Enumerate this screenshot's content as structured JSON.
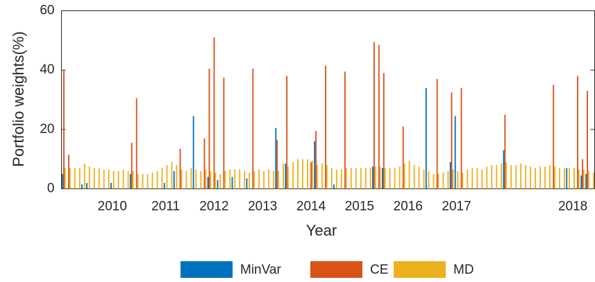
{
  "chart_data": {
    "type": "bar",
    "xlabel": "Year",
    "ylabel": "Portfolio weights(%)",
    "categories": [
      null,
      null,
      null,
      null,
      null,
      null,
      null,
      null,
      null,
      null,
      "2010",
      null,
      null,
      null,
      null,
      null,
      null,
      null,
      null,
      null,
      null,
      "2011",
      null,
      null,
      null,
      null,
      null,
      null,
      null,
      null,
      null,
      "2012",
      null,
      null,
      null,
      null,
      null,
      null,
      null,
      null,
      null,
      "2013",
      null,
      null,
      null,
      null,
      null,
      null,
      null,
      null,
      null,
      "2014",
      null,
      null,
      null,
      null,
      null,
      null,
      null,
      null,
      null,
      "2015",
      null,
      null,
      null,
      null,
      null,
      null,
      null,
      null,
      null,
      "2016",
      null,
      null,
      null,
      null,
      null,
      null,
      null,
      null,
      null,
      "2017",
      null,
      null,
      null,
      null,
      null,
      null,
      null,
      null,
      null,
      null,
      null,
      null,
      null,
      null,
      null,
      null,
      null,
      null,
      null,
      null,
      null,
      null,
      null,
      "2018",
      null,
      null,
      null,
      null
    ],
    "series": [
      {
        "name": "MinVar",
        "color": "#0072BD",
        "values": [
          5,
          0,
          0,
          0,
          1.5,
          2,
          0,
          0,
          0,
          0,
          2,
          0,
          0,
          0,
          5,
          0,
          0,
          0,
          0,
          0,
          0,
          2,
          0,
          6,
          0,
          0,
          0,
          24.5,
          0,
          0,
          4,
          0,
          3,
          0,
          0,
          4,
          0,
          0,
          3.5,
          0,
          0,
          0,
          0,
          0,
          20.5,
          0,
          8.5,
          0,
          0,
          0,
          0,
          0,
          16,
          0,
          0,
          0,
          1.5,
          0,
          0,
          0,
          0,
          0,
          0,
          0,
          7.5,
          0,
          7,
          0,
          0,
          0,
          0,
          0,
          0,
          0,
          0,
          34,
          0,
          0,
          0,
          0,
          9,
          24.5,
          0,
          0,
          0,
          0,
          0,
          0,
          0,
          0,
          0,
          13,
          0,
          0,
          0,
          0,
          0,
          0,
          0,
          0,
          0,
          0,
          0,
          0,
          7,
          0,
          0,
          4.5,
          5,
          0
        ]
      },
      {
        "name": "CE",
        "color": "#D95319",
        "values": [
          40,
          11.5,
          0,
          0,
          0,
          0,
          0,
          0,
          0,
          0,
          0,
          0,
          0,
          0,
          15.5,
          30.5,
          0,
          0,
          0,
          0,
          0,
          0,
          0,
          0,
          13.5,
          0,
          0,
          0,
          0,
          17,
          40.5,
          51,
          0,
          37.5,
          0,
          0,
          0,
          0,
          0,
          40.5,
          0,
          0,
          0,
          0,
          16.5,
          0,
          38,
          0,
          0,
          0,
          0,
          9,
          19.5,
          0,
          41.5,
          0,
          0,
          0,
          39.5,
          0,
          0,
          0,
          0,
          0,
          49.5,
          48.5,
          39,
          0,
          0,
          0,
          21,
          0,
          0,
          0,
          0,
          0,
          0,
          37,
          0,
          0,
          32.5,
          0,
          34,
          0,
          0,
          0,
          0,
          0,
          0,
          0,
          0,
          25,
          0,
          0,
          0,
          0,
          0,
          0,
          0,
          0,
          0,
          35,
          0,
          0,
          0,
          0,
          38,
          10,
          33,
          0
        ]
      },
      {
        "name": "MD",
        "color": "#EDB120",
        "values": [
          7,
          7,
          7,
          7,
          8.5,
          7.5,
          7,
          7,
          6.5,
          6.5,
          6,
          6,
          6.5,
          6,
          6,
          5,
          5,
          5,
          5.5,
          6,
          7,
          8,
          9,
          8,
          6.5,
          6,
          7,
          6.5,
          6,
          6.5,
          6,
          5.5,
          5,
          6,
          6.5,
          6.5,
          6.5,
          6,
          5.5,
          6,
          6.5,
          6,
          6.5,
          6,
          6,
          8.5,
          7.5,
          9,
          10,
          10,
          10,
          9.5,
          8,
          8.5,
          8,
          7,
          6.5,
          6.5,
          7,
          7,
          7,
          7,
          7,
          7,
          7.5,
          7.5,
          7,
          7,
          7,
          7.5,
          8.5,
          9.5,
          8,
          7.5,
          6.5,
          6,
          5,
          5,
          5.5,
          6,
          6.5,
          6,
          5.5,
          6.5,
          7,
          7,
          6.5,
          7.5,
          8,
          8,
          8.5,
          9,
          8,
          8,
          8.5,
          8,
          7.5,
          7,
          7.5,
          7.5,
          8,
          7.5,
          7,
          7,
          7,
          7,
          6.5,
          6.5,
          6,
          5.5
        ]
      }
    ],
    "ylim": [
      0,
      60
    ],
    "yticks": [
      0,
      20,
      40,
      60
    ],
    "grid": false,
    "legend": "bottom"
  }
}
